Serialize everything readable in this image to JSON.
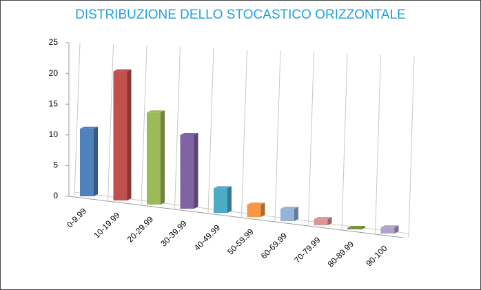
{
  "chart_data": {
    "type": "bar3d",
    "title": "DISTRIBUZIONE  DELLO STOCASTICO  ORIZZONTALE",
    "categories": [
      "0-9.99",
      "10-19.99",
      "20-29.99",
      "30-39.99",
      "40-49.99",
      "50-59.99",
      "60-69.99",
      "70-79.99",
      "80-89.99",
      "90-100"
    ],
    "values": [
      11,
      21,
      15,
      12,
      4,
      2,
      2,
      1,
      0,
      1
    ],
    "colors": [
      "#4f81bd",
      "#c0504d",
      "#9bbb59",
      "#8064a2",
      "#4bacc6",
      "#f79646",
      "#95b3d7",
      "#d99694",
      "#77933c",
      "#b3a2c7"
    ],
    "ylim": [
      0,
      25
    ],
    "yticks": [
      0,
      5,
      10,
      15,
      20,
      25
    ]
  }
}
